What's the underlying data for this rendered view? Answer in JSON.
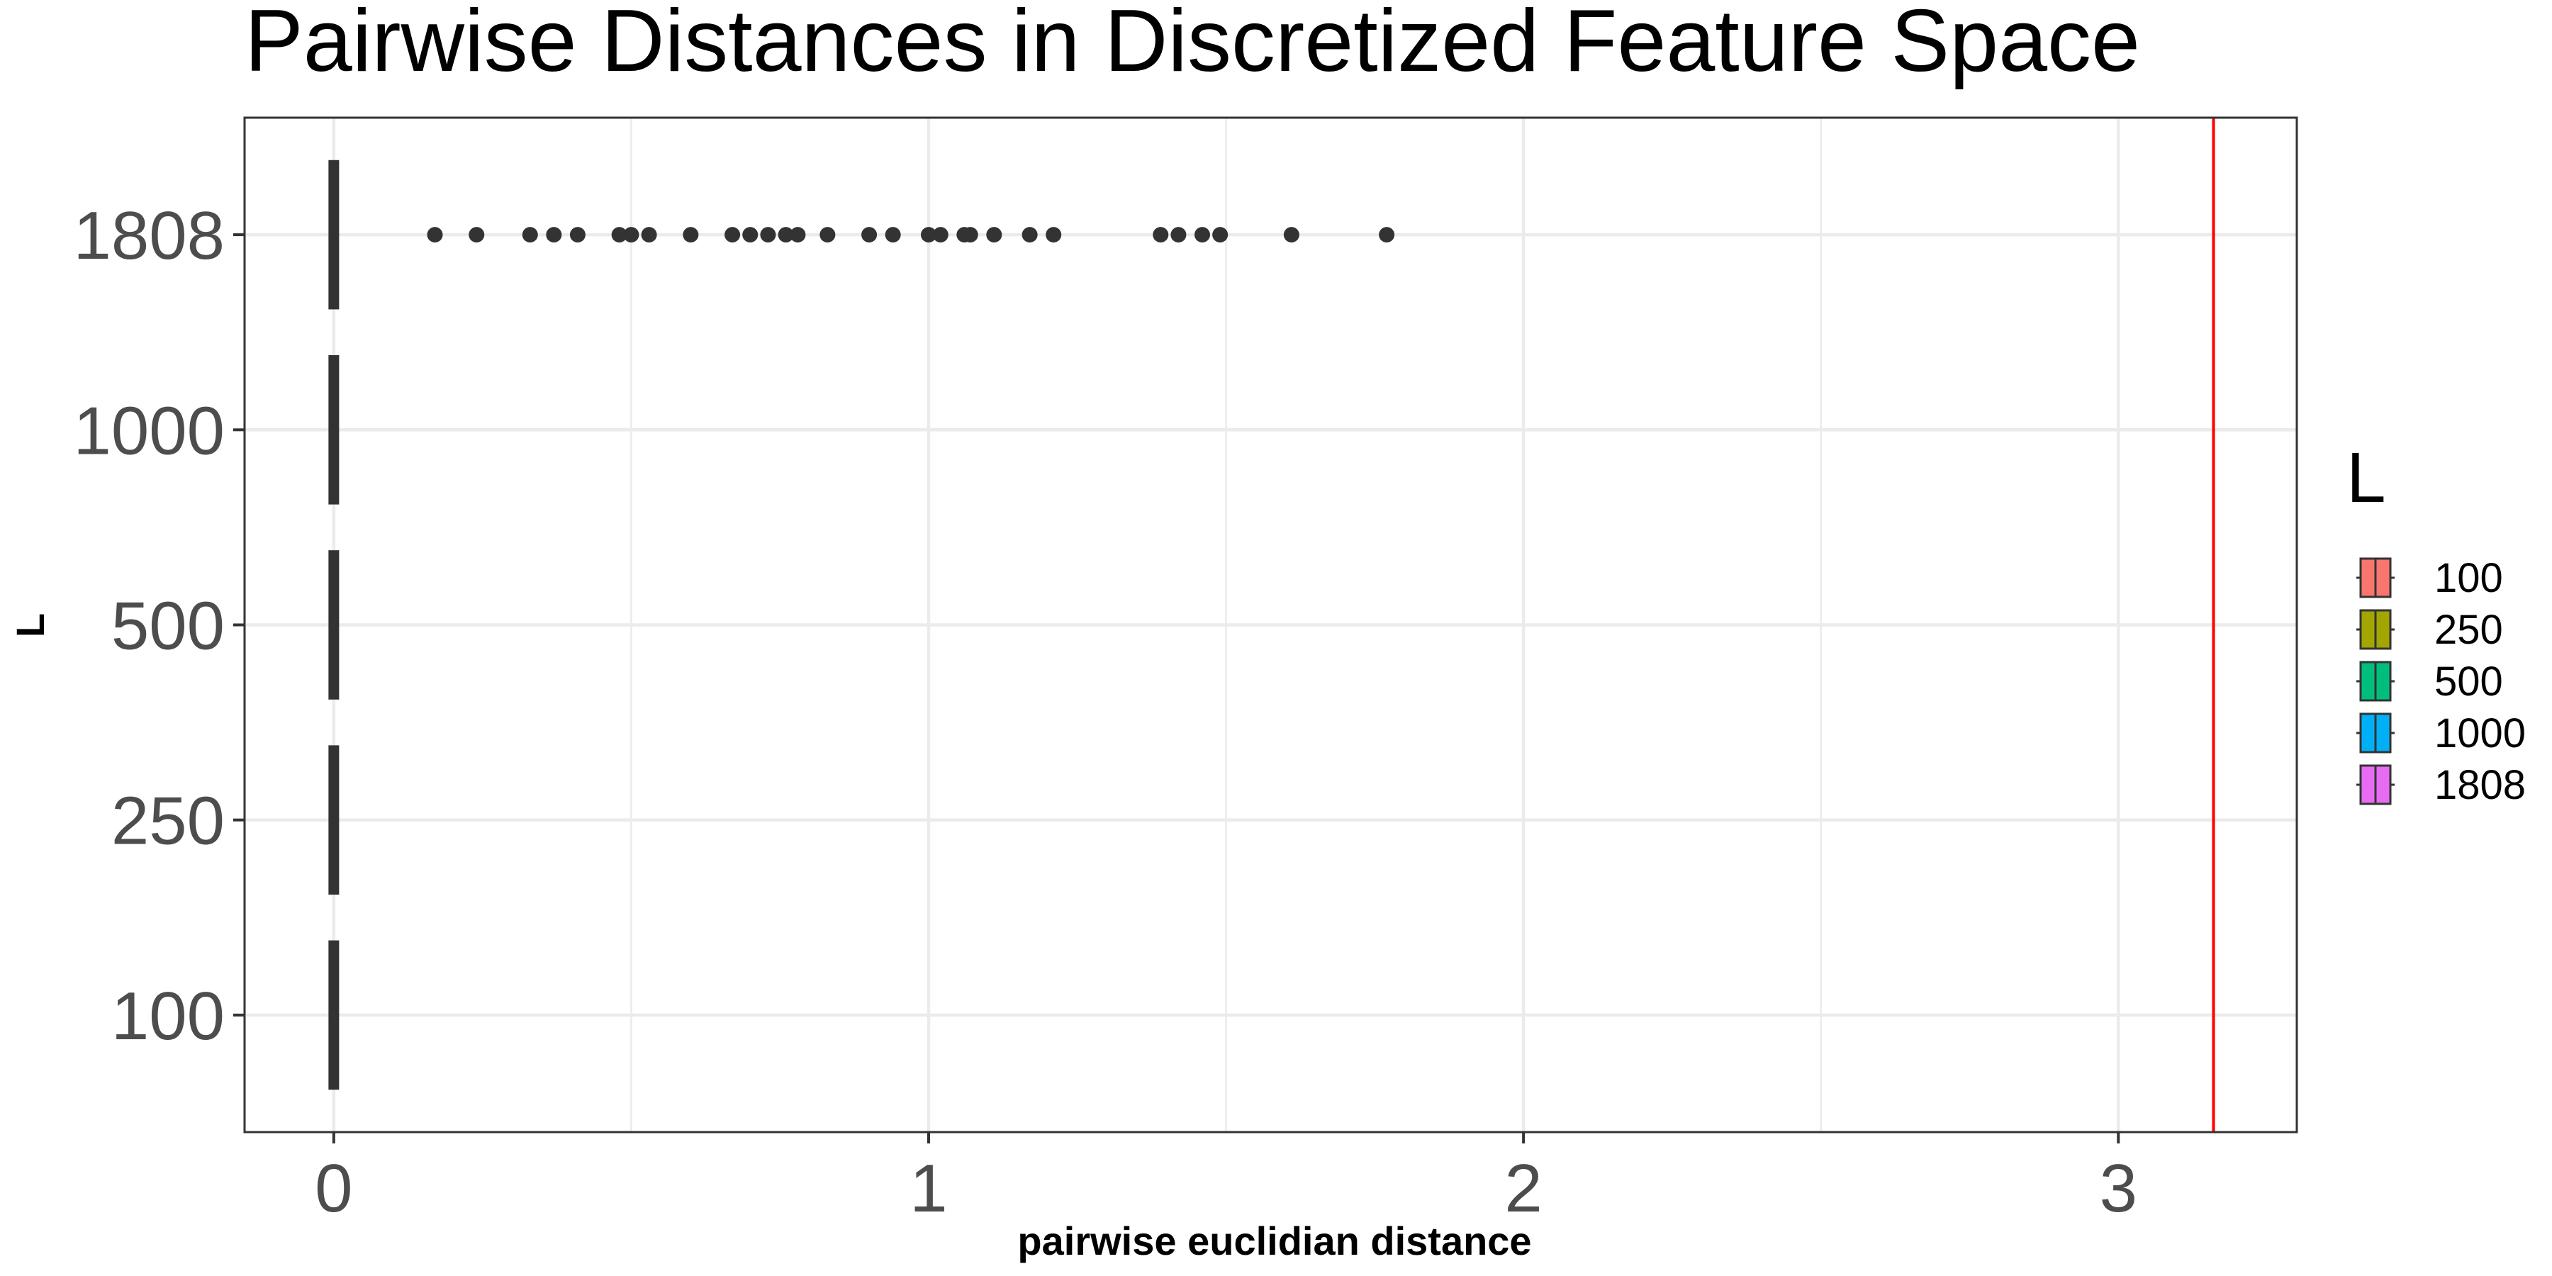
{
  "chart_data": {
    "type": "boxplot",
    "orientation": "horizontal",
    "title": "Pairwise Distances in Discretized Feature Space",
    "xlabel": "pairwise euclidian distance",
    "ylabel": "L",
    "xlim": [
      -0.15,
      3.3
    ],
    "x_ticks": [
      0,
      1,
      2,
      3
    ],
    "categories": [
      "100",
      "250",
      "500",
      "1000",
      "1808"
    ],
    "grid": true,
    "reference_line": {
      "x": 3.16,
      "color": "#ff0000"
    },
    "boxes": [
      {
        "category": "100",
        "median": 0,
        "q1": 0,
        "q3": 0,
        "whisker_low": 0,
        "whisker_high": 0,
        "outliers": []
      },
      {
        "category": "250",
        "median": 0,
        "q1": 0,
        "q3": 0,
        "whisker_low": 0,
        "whisker_high": 0,
        "outliers": []
      },
      {
        "category": "500",
        "median": 0,
        "q1": 0,
        "q3": 0,
        "whisker_low": 0,
        "whisker_high": 0,
        "outliers": []
      },
      {
        "category": "1000",
        "median": 0,
        "q1": 0,
        "q3": 0,
        "whisker_low": 0,
        "whisker_high": 0,
        "outliers": []
      },
      {
        "category": "1808",
        "median": 0,
        "q1": 0,
        "q3": 0,
        "whisker_low": 0,
        "whisker_high": 0,
        "outliers": [
          0.17,
          0.24,
          0.33,
          0.37,
          0.41,
          0.48,
          0.5,
          0.53,
          0.6,
          0.67,
          0.7,
          0.73,
          0.76,
          0.78,
          0.83,
          0.9,
          0.94,
          1.0,
          1.02,
          1.06,
          1.07,
          1.11,
          1.17,
          1.21,
          1.39,
          1.42,
          1.46,
          1.49,
          1.61,
          1.77
        ]
      }
    ],
    "legend": {
      "title": "L",
      "position": "right",
      "entries": [
        {
          "label": "100",
          "color": "#f8766d"
        },
        {
          "label": "250",
          "color": "#a3a500"
        },
        {
          "label": "500",
          "color": "#00bf7d"
        },
        {
          "label": "1000",
          "color": "#00b0f6"
        },
        {
          "label": "1808",
          "color": "#e76bf3"
        }
      ]
    },
    "colors": {
      "outline": "#333333",
      "grid": "#ebebeb",
      "panel_border": "#333333",
      "point": "#333333"
    }
  }
}
